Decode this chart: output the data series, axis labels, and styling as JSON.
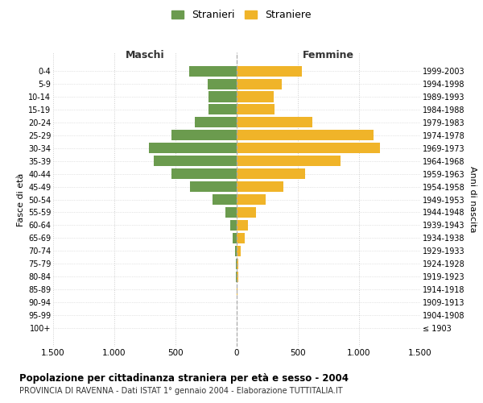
{
  "age_groups": [
    "0-4",
    "5-9",
    "10-14",
    "15-19",
    "20-24",
    "25-29",
    "30-34",
    "35-39",
    "40-44",
    "45-49",
    "50-54",
    "55-59",
    "60-64",
    "65-69",
    "70-74",
    "75-79",
    "80-84",
    "85-89",
    "90-94",
    "95-99",
    "100+"
  ],
  "birth_years": [
    "1999-2003",
    "1994-1998",
    "1989-1993",
    "1984-1988",
    "1979-1983",
    "1974-1978",
    "1969-1973",
    "1964-1968",
    "1959-1963",
    "1954-1958",
    "1949-1953",
    "1944-1948",
    "1939-1943",
    "1934-1938",
    "1929-1933",
    "1924-1928",
    "1919-1923",
    "1914-1918",
    "1909-1913",
    "1904-1908",
    "≤ 1903"
  ],
  "maschi": [
    390,
    240,
    230,
    230,
    340,
    530,
    720,
    680,
    530,
    380,
    200,
    95,
    55,
    30,
    15,
    8,
    5,
    2,
    1,
    0,
    0
  ],
  "femmine": [
    530,
    370,
    300,
    310,
    620,
    1120,
    1170,
    850,
    560,
    380,
    240,
    155,
    95,
    65,
    30,
    15,
    10,
    5,
    2,
    1,
    0
  ],
  "color_maschi": "#6b9b4e",
  "color_femmine": "#f0b429",
  "title": "Popolazione per cittadinanza straniera per età e sesso - 2004",
  "subtitle": "PROVINCIA DI RAVENNA - Dati ISTAT 1° gennaio 2004 - Elaborazione TUTTITALIA.IT",
  "xlabel_left": "Maschi",
  "xlabel_right": "Femmine",
  "ylabel_left": "Fasce di età",
  "ylabel_right": "Anni di nascita",
  "legend_maschi": "Stranieri",
  "legend_femmine": "Straniere",
  "xlim": 1500,
  "xticks": [
    -1500,
    -1000,
    -500,
    0,
    500,
    1000,
    1500
  ],
  "xticklabels": [
    "1.500",
    "1.000",
    "500",
    "0",
    "500",
    "1.000",
    "1.500"
  ],
  "background_color": "#ffffff",
  "grid_color": "#cccccc"
}
